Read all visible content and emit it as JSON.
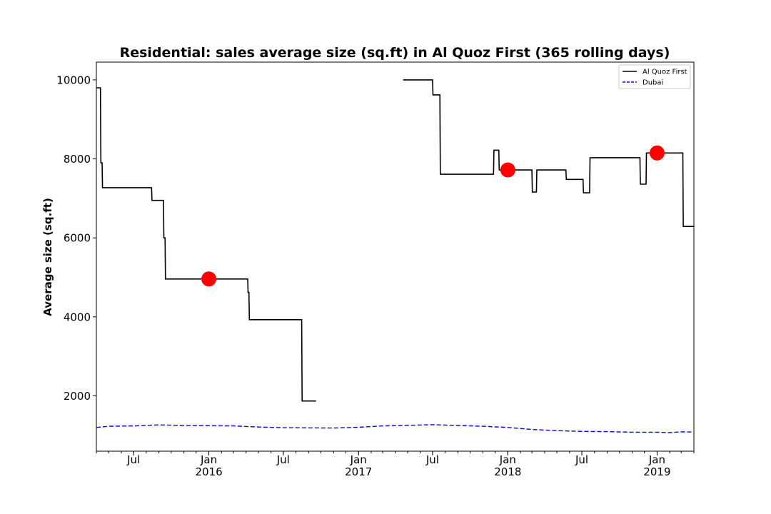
{
  "chart_data": {
    "type": "line",
    "title": "Residential: sales average size (sq.ft) in Al Quoz First (365 rolling days)",
    "xlabel": "",
    "ylabel": "Average size (sq.ft)",
    "xlim": [
      "2015-04-01",
      "2019-04-01"
    ],
    "ylim": [
      600,
      10450
    ],
    "y_ticks": [
      2000,
      4000,
      6000,
      8000,
      10000
    ],
    "x_ticks": [
      {
        "date": "2015-07-01",
        "label": "Jul",
        "sublabel": ""
      },
      {
        "date": "2016-01-01",
        "label": "Jan",
        "sublabel": "2016"
      },
      {
        "date": "2016-07-01",
        "label": "Jul",
        "sublabel": ""
      },
      {
        "date": "2017-01-01",
        "label": "Jan",
        "sublabel": "2017"
      },
      {
        "date": "2017-07-01",
        "label": "Jul",
        "sublabel": ""
      },
      {
        "date": "2018-01-01",
        "label": "Jan",
        "sublabel": "2018"
      },
      {
        "date": "2018-07-01",
        "label": "Jul",
        "sublabel": ""
      },
      {
        "date": "2019-01-01",
        "label": "Jan",
        "sublabel": "2019"
      }
    ],
    "legend_position": "top-right",
    "grid": false,
    "series": [
      {
        "name": "Al Quoz First",
        "color": "#000000",
        "style": "solid",
        "segments": [
          [
            [
              "2015-04-01",
              9800
            ],
            [
              "2015-04-11",
              9800
            ],
            [
              "2015-04-12",
              7900
            ],
            [
              "2015-04-15",
              7900
            ],
            [
              "2015-04-16",
              7270
            ],
            [
              "2015-08-14",
              7270
            ],
            [
              "2015-08-15",
              6950
            ],
            [
              "2015-09-12",
              6950
            ],
            [
              "2015-09-13",
              6000
            ],
            [
              "2015-09-16",
              6000
            ],
            [
              "2015-09-17",
              4960
            ],
            [
              "2016-04-05",
              4960
            ],
            [
              "2016-04-06",
              4620
            ],
            [
              "2016-04-08",
              4620
            ],
            [
              "2016-04-09",
              3930
            ],
            [
              "2016-08-15",
              3930
            ],
            [
              "2016-08-16",
              1870
            ],
            [
              "2016-09-19",
              1870
            ]
          ],
          [
            [
              "2017-04-20",
              10000
            ],
            [
              "2017-07-01",
              10000
            ],
            [
              "2017-07-02",
              9620
            ],
            [
              "2017-07-19",
              9620
            ],
            [
              "2017-07-20",
              7610
            ],
            [
              "2017-11-27",
              7610
            ],
            [
              "2017-11-28",
              8220
            ],
            [
              "2017-12-10",
              8220
            ],
            [
              "2017-12-11",
              7720
            ],
            [
              "2018-03-01",
              7720
            ],
            [
              "2018-03-02",
              7160
            ],
            [
              "2018-03-12",
              7160
            ],
            [
              "2018-03-13",
              7720
            ],
            [
              "2018-05-23",
              7720
            ],
            [
              "2018-05-24",
              7480
            ],
            [
              "2018-07-04",
              7480
            ],
            [
              "2018-07-05",
              7140
            ],
            [
              "2018-07-20",
              7140
            ],
            [
              "2018-07-21",
              8030
            ],
            [
              "2018-11-20",
              8030
            ],
            [
              "2018-11-21",
              7360
            ],
            [
              "2018-12-05",
              7360
            ],
            [
              "2018-12-06",
              8150
            ],
            [
              "2019-03-05",
              8150
            ],
            [
              "2019-03-06",
              6290
            ],
            [
              "2019-04-01",
              6290
            ]
          ]
        ]
      },
      {
        "name": "Dubai",
        "color": "#0000ff",
        "style": "dashed",
        "points": [
          [
            "2015-04-01",
            1200
          ],
          [
            "2015-05-01",
            1230
          ],
          [
            "2015-07-01",
            1240
          ],
          [
            "2015-09-01",
            1265
          ],
          [
            "2015-11-01",
            1250
          ],
          [
            "2016-01-01",
            1245
          ],
          [
            "2016-03-01",
            1240
          ],
          [
            "2016-05-01",
            1210
          ],
          [
            "2016-07-01",
            1195
          ],
          [
            "2016-09-01",
            1190
          ],
          [
            "2016-11-01",
            1185
          ],
          [
            "2017-01-01",
            1205
          ],
          [
            "2017-03-01",
            1240
          ],
          [
            "2017-05-01",
            1255
          ],
          [
            "2017-07-01",
            1270
          ],
          [
            "2017-09-01",
            1250
          ],
          [
            "2017-11-01",
            1230
          ],
          [
            "2018-01-01",
            1200
          ],
          [
            "2018-03-01",
            1150
          ],
          [
            "2018-05-01",
            1120
          ],
          [
            "2018-07-01",
            1100
          ],
          [
            "2018-09-01",
            1095
          ],
          [
            "2018-11-01",
            1080
          ],
          [
            "2019-01-01",
            1080
          ],
          [
            "2019-02-01",
            1070
          ],
          [
            "2019-03-01",
            1090
          ],
          [
            "2019-04-01",
            1085
          ]
        ]
      }
    ],
    "markers": [
      {
        "date": "2016-01-01",
        "value": 4960,
        "color": "#ff0000"
      },
      {
        "date": "2018-01-01",
        "value": 7720,
        "color": "#ff0000"
      },
      {
        "date": "2019-01-01",
        "value": 8150,
        "color": "#ff0000"
      }
    ]
  }
}
